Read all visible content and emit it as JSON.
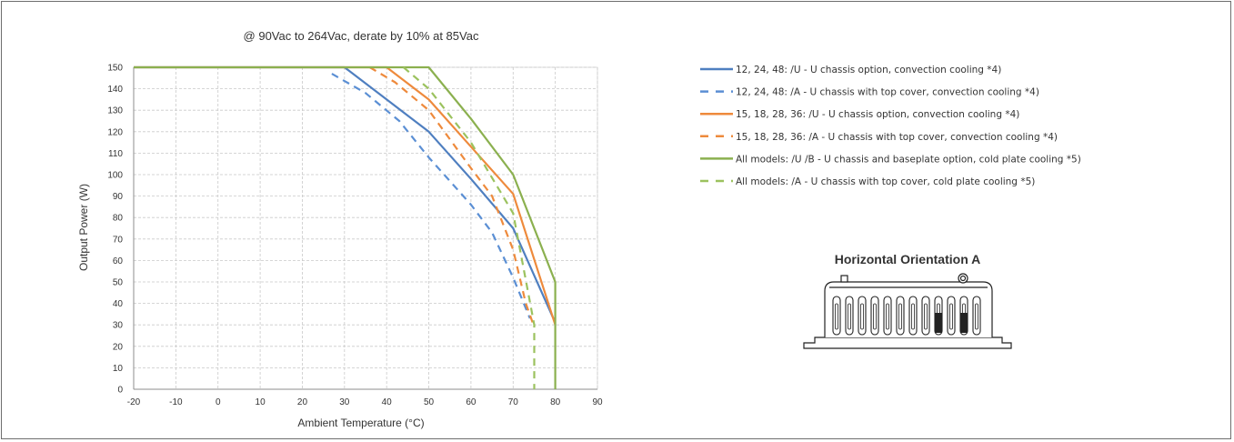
{
  "chart_data": {
    "type": "line",
    "title": "@ 90Vac to 264Vac, derate by 10% at 85Vac",
    "xlabel": "Ambient Temperature  (°C)",
    "ylabel": "Output Power  (W)",
    "xlim": [
      -20,
      90
    ],
    "ylim": [
      0,
      150
    ],
    "x_ticks": [
      -20,
      -10,
      0,
      10,
      20,
      30,
      40,
      50,
      60,
      70,
      80,
      90
    ],
    "y_ticks": [
      0,
      10,
      20,
      30,
      40,
      50,
      60,
      70,
      80,
      90,
      100,
      110,
      120,
      130,
      140,
      150
    ],
    "grid": true,
    "legend_position": "right",
    "series": [
      {
        "name": "12, 24, 48: /U - U chassis option, convection cooling *4)",
        "color": "#4f7fc0",
        "dash": false,
        "points": [
          [
            -20,
            150
          ],
          [
            30,
            150
          ],
          [
            40,
            135
          ],
          [
            50,
            120
          ],
          [
            60,
            98
          ],
          [
            70,
            75
          ],
          [
            80,
            31
          ]
        ]
      },
      {
        "name": "12, 24, 48: /A - U chassis with top cover, convection cooling *4)",
        "color": "#5b8fd4",
        "dash": true,
        "points": [
          [
            27,
            147
          ],
          [
            35,
            138
          ],
          [
            43,
            125
          ],
          [
            50,
            108
          ],
          [
            60,
            86
          ],
          [
            65,
            73
          ],
          [
            70,
            52
          ],
          [
            74,
            33
          ]
        ]
      },
      {
        "name": "15, 18, 28, 36: /U - U chassis option, convection cooling *4)",
        "color": "#ee8a3c",
        "dash": false,
        "points": [
          [
            -20,
            150
          ],
          [
            40,
            150
          ],
          [
            50,
            135
          ],
          [
            60,
            113
          ],
          [
            70,
            91
          ],
          [
            80,
            30
          ]
        ]
      },
      {
        "name": "15, 18, 28, 36: /A - U chassis with top cover, convection cooling *4)",
        "color": "#ee8a3c",
        "dash": true,
        "points": [
          [
            36,
            150
          ],
          [
            42,
            143
          ],
          [
            50,
            130
          ],
          [
            60,
            103
          ],
          [
            65,
            90
          ],
          [
            70,
            65
          ],
          [
            73,
            40
          ],
          [
            75,
            29
          ]
        ]
      },
      {
        "name": "All models: /U /B - U chassis and baseplate option, cold plate cooling *5)",
        "color": "#8bb04f",
        "dash": false,
        "points": [
          [
            -20,
            150
          ],
          [
            50,
            150
          ],
          [
            60,
            126
          ],
          [
            70,
            100
          ],
          [
            80,
            50
          ],
          [
            80,
            0
          ]
        ]
      },
      {
        "name": "All models: /A -  U chassis with top cover, cold plate cooling *5)",
        "color": "#9bc25e",
        "dash": true,
        "points": [
          [
            44,
            150
          ],
          [
            50,
            140
          ],
          [
            60,
            115
          ],
          [
            70,
            82
          ],
          [
            75,
            30
          ],
          [
            75,
            0
          ]
        ]
      }
    ]
  },
  "diagram": {
    "title": "Horizontal Orientation A"
  }
}
